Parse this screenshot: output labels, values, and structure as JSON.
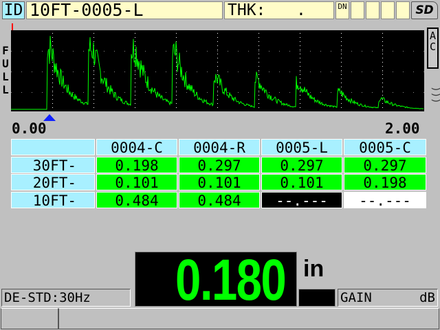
{
  "header": {
    "id_label": "ID",
    "id_value": "10FT-0005-L",
    "thk_label": "THK:",
    "thk_value": ".",
    "dn_icon": "DN",
    "sd_icon": "SD"
  },
  "waveform": {
    "range_label": "FULL",
    "start": "0.00",
    "end": "2.00",
    "mode": "AC",
    "trace_color": "#00ff00"
  },
  "grid": {
    "columns": [
      "0004-C",
      "0004-R",
      "0005-L",
      "0005-C"
    ],
    "rows": [
      {
        "label": "30FT-",
        "values": [
          "0.198",
          "0.297",
          "0.297",
          "0.297"
        ],
        "styles": [
          "green",
          "green",
          "green",
          "green"
        ]
      },
      {
        "label": "20FT-",
        "values": [
          "0.101",
          "0.101",
          "0.101",
          "0.198"
        ],
        "styles": [
          "green",
          "green",
          "green",
          "green"
        ]
      },
      {
        "label": "10FT-",
        "values": [
          "0.484",
          "0.484",
          "--.---",
          "--.---"
        ],
        "styles": [
          "green",
          "green",
          "black",
          "white"
        ]
      }
    ]
  },
  "reading": {
    "value": "0.180",
    "unit": "in",
    "color": "#00ff00"
  },
  "status": {
    "transducer": "DE-STD:30Hz",
    "gain_label": "GAIN",
    "gain_unit": "dB"
  }
}
